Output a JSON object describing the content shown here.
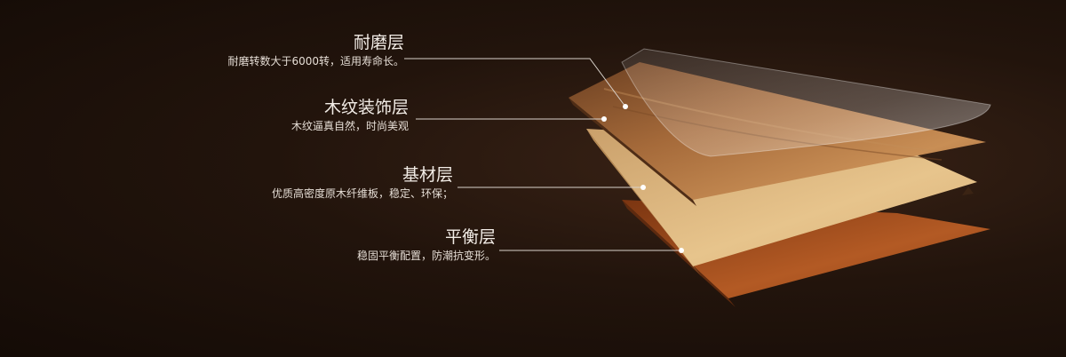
{
  "layers": [
    {
      "title": "耐磨层",
      "desc": "耐磨转数大于6000转，适用寿命长。"
    },
    {
      "title": "木纹装饰层",
      "desc": "木纹逼真自然，时尚美观"
    },
    {
      "title": "基材层",
      "desc": "优质高密度原木纤维板，稳定、环保；"
    },
    {
      "title": "平衡层",
      "desc": "稳固平衡配置，防潮抗变形。"
    }
  ]
}
